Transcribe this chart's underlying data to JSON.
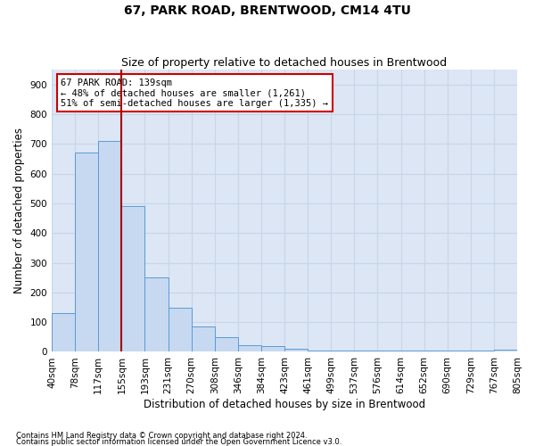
{
  "title": "67, PARK ROAD, BRENTWOOD, CM14 4TU",
  "subtitle": "Size of property relative to detached houses in Brentwood",
  "xlabel": "Distribution of detached houses by size in Brentwood",
  "ylabel": "Number of detached properties",
  "footnote1": "Contains HM Land Registry data © Crown copyright and database right 2024.",
  "footnote2": "Contains public sector information licensed under the Open Government Licence v3.0.",
  "bin_labels": [
    "40sqm",
    "78sqm",
    "117sqm",
    "155sqm",
    "193sqm",
    "231sqm",
    "270sqm",
    "308sqm",
    "346sqm",
    "384sqm",
    "423sqm",
    "461sqm",
    "499sqm",
    "537sqm",
    "576sqm",
    "614sqm",
    "652sqm",
    "690sqm",
    "729sqm",
    "767sqm",
    "805sqm"
  ],
  "bar_heights": [
    130,
    670,
    710,
    490,
    250,
    150,
    85,
    48,
    22,
    18,
    10,
    5,
    5,
    5,
    5,
    5,
    5,
    5,
    5,
    8
  ],
  "bar_color": "#c6d9f1",
  "bar_edge_color": "#5b9bd5",
  "vline_color": "#aa0000",
  "annotation_line1": "67 PARK ROAD: 139sqm",
  "annotation_line2": "← 48% of detached houses are smaller (1,261)",
  "annotation_line3": "51% of semi-detached houses are larger (1,335) →",
  "annotation_box_edgecolor": "#cc0000",
  "annotation_box_facecolor": "white",
  "ylim_max": 950,
  "yticks": [
    0,
    100,
    200,
    300,
    400,
    500,
    600,
    700,
    800,
    900
  ],
  "grid_color": "#c8d4e8",
  "plot_bg_color": "#dce6f5",
  "title_fontsize": 10,
  "subtitle_fontsize": 9,
  "xlabel_fontsize": 8.5,
  "ylabel_fontsize": 8.5,
  "tick_fontsize": 7.5,
  "footnote_fontsize": 6,
  "annot_fontsize": 7.5
}
